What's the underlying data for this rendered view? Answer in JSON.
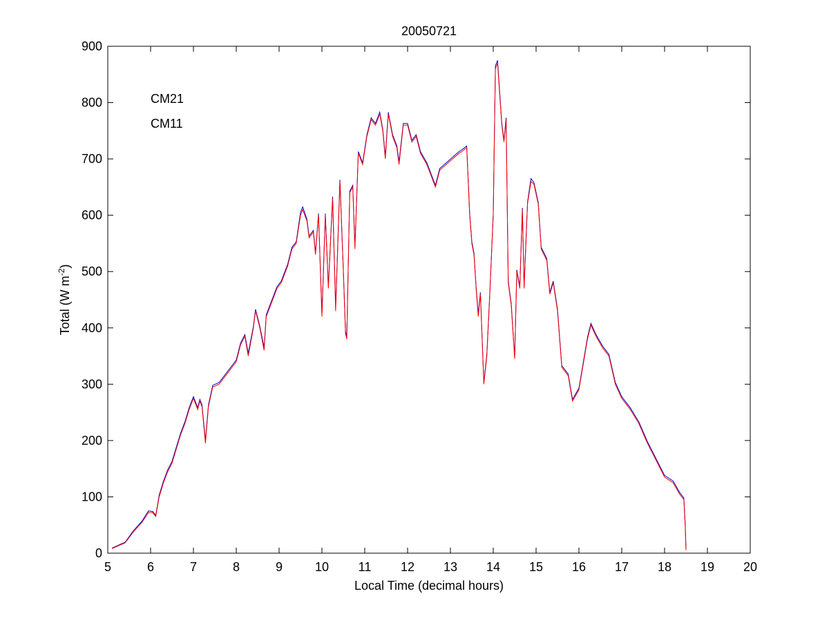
{
  "chart_data": {
    "type": "line",
    "title": "20050721",
    "xlabel": "Local Time (decimal hours)",
    "ylabel": [
      "Total (W m",
      "-2",
      ")"
    ],
    "x": [
      5.1,
      5.3,
      5.4,
      5.6,
      5.8,
      5.95,
      6.05,
      6.12,
      6.2,
      6.3,
      6.4,
      6.5,
      6.6,
      6.7,
      6.8,
      6.9,
      7.0,
      7.1,
      7.15,
      7.2,
      7.28,
      7.35,
      7.45,
      7.6,
      7.7,
      7.85,
      8.0,
      8.1,
      8.2,
      8.28,
      8.4,
      8.45,
      8.55,
      8.65,
      8.7,
      8.8,
      8.95,
      9.05,
      9.2,
      9.3,
      9.4,
      9.5,
      9.55,
      9.65,
      9.7,
      9.8,
      9.85,
      9.92,
      10.0,
      10.08,
      10.15,
      10.25,
      10.32,
      10.42,
      10.5,
      10.55,
      10.58,
      10.65,
      10.72,
      10.77,
      10.85,
      10.95,
      11.05,
      11.15,
      11.25,
      11.35,
      11.42,
      11.48,
      11.55,
      11.65,
      11.75,
      11.8,
      11.9,
      12.0,
      12.1,
      12.2,
      12.3,
      12.45,
      12.55,
      12.65,
      12.75,
      12.9,
      13.05,
      13.2,
      13.3,
      13.38,
      13.45,
      13.5,
      13.55,
      13.6,
      13.65,
      13.7,
      13.78,
      13.85,
      13.92,
      14.0,
      14.05,
      14.1,
      14.2,
      14.25,
      14.3,
      14.35,
      14.42,
      14.5,
      14.55,
      14.62,
      14.68,
      14.72,
      14.8,
      14.88,
      14.95,
      15.05,
      15.12,
      15.25,
      15.32,
      15.4,
      15.5,
      15.6,
      15.75,
      15.85,
      16.0,
      16.2,
      16.28,
      16.4,
      16.55,
      16.7,
      16.85,
      17.0,
      17.2,
      17.4,
      17.6,
      17.8,
      18.0,
      18.2,
      18.35,
      18.45,
      18.48,
      18.5
    ],
    "series": [
      {
        "name": "CM21",
        "color": "#0000cc",
        "values": [
          9,
          16,
          19,
          40,
          57,
          75,
          74,
          67,
          103,
          128,
          148,
          163,
          188,
          213,
          233,
          258,
          278,
          258,
          273,
          263,
          200,
          263,
          298,
          303,
          313,
          328,
          343,
          373,
          388,
          355,
          403,
          433,
          403,
          365,
          423,
          443,
          473,
          483,
          513,
          543,
          553,
          605,
          615,
          593,
          563,
          573,
          533,
          603,
          425,
          603,
          473,
          633,
          435,
          663,
          503,
          395,
          383,
          643,
          653,
          545,
          713,
          693,
          743,
          773,
          763,
          783,
          753,
          705,
          783,
          743,
          723,
          695,
          763,
          763,
          733,
          743,
          713,
          693,
          673,
          653,
          683,
          693,
          703,
          713,
          718,
          723,
          603,
          553,
          533,
          473,
          425,
          463,
          303,
          353,
          463,
          603,
          865,
          875,
          763,
          733,
          773,
          483,
          443,
          348,
          503,
          473,
          613,
          473,
          623,
          665,
          658,
          623,
          543,
          523,
          463,
          483,
          433,
          333,
          318,
          273,
          293,
          383,
          408,
          388,
          368,
          353,
          303,
          278,
          258,
          233,
          198,
          168,
          138,
          128,
          108,
          98,
          55,
          8
        ]
      },
      {
        "name": "CM11",
        "color": "#ff0000",
        "values": [
          8,
          15,
          18,
          38,
          55,
          72,
          72,
          65,
          100,
          125,
          145,
          160,
          185,
          210,
          230,
          255,
          275,
          255,
          270,
          260,
          195,
          260,
          295,
          300,
          310,
          325,
          340,
          370,
          385,
          350,
          400,
          430,
          400,
          360,
          420,
          440,
          470,
          480,
          510,
          540,
          550,
          600,
          610,
          590,
          560,
          570,
          530,
          600,
          420,
          600,
          470,
          630,
          430,
          660,
          500,
          390,
          380,
          640,
          650,
          540,
          710,
          690,
          740,
          770,
          760,
          780,
          750,
          700,
          780,
          740,
          720,
          690,
          760,
          760,
          730,
          740,
          710,
          690,
          670,
          650,
          680,
          690,
          700,
          710,
          715,
          720,
          600,
          550,
          530,
          470,
          420,
          460,
          300,
          350,
          460,
          600,
          860,
          870,
          760,
          730,
          770,
          480,
          440,
          345,
          500,
          470,
          610,
          470,
          620,
          660,
          655,
          620,
          540,
          520,
          460,
          480,
          430,
          330,
          315,
          270,
          290,
          380,
          405,
          385,
          365,
          350,
          300,
          275,
          255,
          230,
          195,
          165,
          135,
          125,
          105,
          95,
          50,
          5
        ]
      }
    ],
    "xlim": [
      5,
      20
    ],
    "xticks": [
      5,
      6,
      7,
      8,
      9,
      10,
      11,
      12,
      13,
      14,
      15,
      16,
      17,
      18,
      19,
      20
    ],
    "ylim": [
      0,
      900
    ],
    "yticks": [
      0,
      100,
      200,
      300,
      400,
      500,
      600,
      700,
      800,
      900
    ]
  }
}
